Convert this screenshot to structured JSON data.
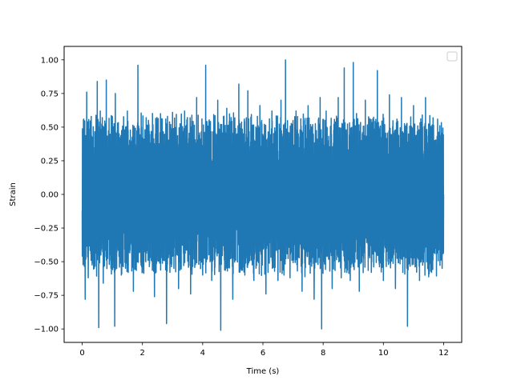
{
  "chart_data": {
    "type": "line",
    "title": "",
    "xlabel": "Time (s)",
    "ylabel": "Strain",
    "xlim": [
      -0.6,
      12.6
    ],
    "ylim": [
      -1.1,
      1.1
    ],
    "xticks": [
      0,
      2,
      4,
      6,
      8,
      10,
      12
    ],
    "xtick_labels": [
      "0",
      "2",
      "4",
      "6",
      "8",
      "10",
      "12"
    ],
    "yticks": [
      -1.0,
      -0.75,
      -0.5,
      -0.25,
      0.0,
      0.25,
      0.5,
      0.75,
      1.0
    ],
    "ytick_labels": [
      "−1.00",
      "−0.75",
      "−0.50",
      "−0.25",
      "0.00",
      "0.25",
      "0.50",
      "0.75",
      "1.00"
    ],
    "grid": false,
    "legend": {
      "placement": "top-right",
      "entries": []
    },
    "series": [
      {
        "color": "#1f77b4",
        "x_range": [
          0,
          12
        ],
        "y_range": [
          -1.0,
          1.0
        ],
        "samples": [
          [
            0.0,
            -0.12
          ],
          [
            0.05,
            0.56
          ],
          [
            0.1,
            -0.78
          ],
          [
            0.15,
            0.76
          ],
          [
            0.2,
            -0.62
          ],
          [
            0.3,
            0.58
          ],
          [
            0.4,
            -0.55
          ],
          [
            0.5,
            0.84
          ],
          [
            0.55,
            -0.99
          ],
          [
            0.6,
            0.62
          ],
          [
            0.7,
            -0.66
          ],
          [
            0.8,
            0.85
          ],
          [
            0.9,
            -0.52
          ],
          [
            1.0,
            0.58
          ],
          [
            1.08,
            -0.98
          ],
          [
            1.1,
            0.75
          ],
          [
            1.3,
            -0.6
          ],
          [
            1.5,
            0.62
          ],
          [
            1.7,
            -0.72
          ],
          [
            1.85,
            0.96
          ],
          [
            2.0,
            -0.58
          ],
          [
            2.2,
            0.55
          ],
          [
            2.4,
            -0.76
          ],
          [
            2.6,
            0.6
          ],
          [
            2.8,
            -0.96
          ],
          [
            3.0,
            0.61
          ],
          [
            3.2,
            -0.7
          ],
          [
            3.4,
            0.62
          ],
          [
            3.6,
            -0.74
          ],
          [
            3.8,
            0.72
          ],
          [
            4.0,
            -0.6
          ],
          [
            4.1,
            0.96
          ],
          [
            4.3,
            -0.64
          ],
          [
            4.5,
            0.7
          ],
          [
            4.6,
            -1.01
          ],
          [
            4.8,
            0.64
          ],
          [
            5.0,
            -0.78
          ],
          [
            5.2,
            0.82
          ],
          [
            5.4,
            -0.6
          ],
          [
            5.5,
            0.77
          ],
          [
            5.7,
            -0.64
          ],
          [
            5.9,
            0.66
          ],
          [
            6.1,
            -0.74
          ],
          [
            6.3,
            0.62
          ],
          [
            6.5,
            -0.64
          ],
          [
            6.6,
            0.7
          ],
          [
            6.7,
            -0.6
          ],
          [
            6.75,
            1.0
          ],
          [
            6.9,
            -0.62
          ],
          [
            7.1,
            0.62
          ],
          [
            7.3,
            -0.72
          ],
          [
            7.5,
            0.66
          ],
          [
            7.7,
            -0.78
          ],
          [
            7.9,
            0.72
          ],
          [
            7.95,
            -1.0
          ],
          [
            8.1,
            0.62
          ],
          [
            8.3,
            -0.7
          ],
          [
            8.5,
            0.72
          ],
          [
            8.6,
            -0.62
          ],
          [
            8.7,
            0.94
          ],
          [
            8.9,
            -0.64
          ],
          [
            9.0,
            0.98
          ],
          [
            9.2,
            -0.72
          ],
          [
            9.4,
            0.7
          ],
          [
            9.6,
            -0.58
          ],
          [
            9.8,
            0.92
          ],
          [
            10.0,
            -0.64
          ],
          [
            10.2,
            0.74
          ],
          [
            10.4,
            -0.7
          ],
          [
            10.6,
            0.72
          ],
          [
            10.8,
            -0.98
          ],
          [
            11.0,
            0.66
          ],
          [
            11.2,
            -0.64
          ],
          [
            11.4,
            0.72
          ],
          [
            11.6,
            -0.58
          ],
          [
            11.8,
            0.56
          ],
          [
            11.95,
            -0.55
          ],
          [
            12.0,
            0.0
          ]
        ]
      }
    ]
  }
}
